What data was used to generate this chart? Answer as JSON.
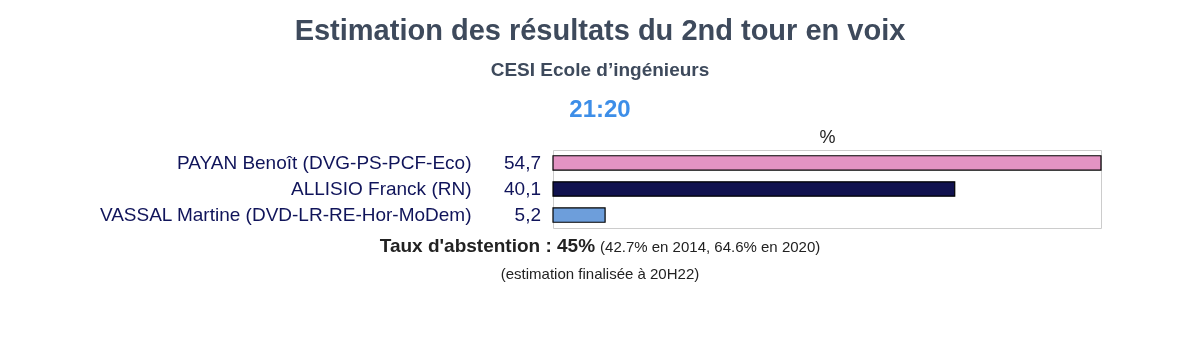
{
  "chart_data": {
    "type": "bar",
    "orientation": "horizontal",
    "title": "Estimation des résultats du 2nd tour en voix",
    "subtitle": "CESI Ecole d’ingénieurs",
    "categories": [
      "PAYAN Benoît (DVG-PS-PCF-Eco)",
      "ALLISIO Franck (RN)",
      "VASSAL Martine (DVD-LR-RE-Hor-MoDem)"
    ],
    "values": [
      54.7,
      40.1,
      5.2
    ],
    "colors": [
      "#e393c3",
      "#11124f",
      "#6d9edb"
    ],
    "value_labels": [
      "54,7",
      "40,1",
      "5,2"
    ],
    "xlabel": "%",
    "annotations": [
      "21:20",
      "Taux d'abstention : 45%",
      "(42.7% en 2014, 64.6% en 2020)",
      "(estimation finalisée à 20H22)"
    ]
  }
}
